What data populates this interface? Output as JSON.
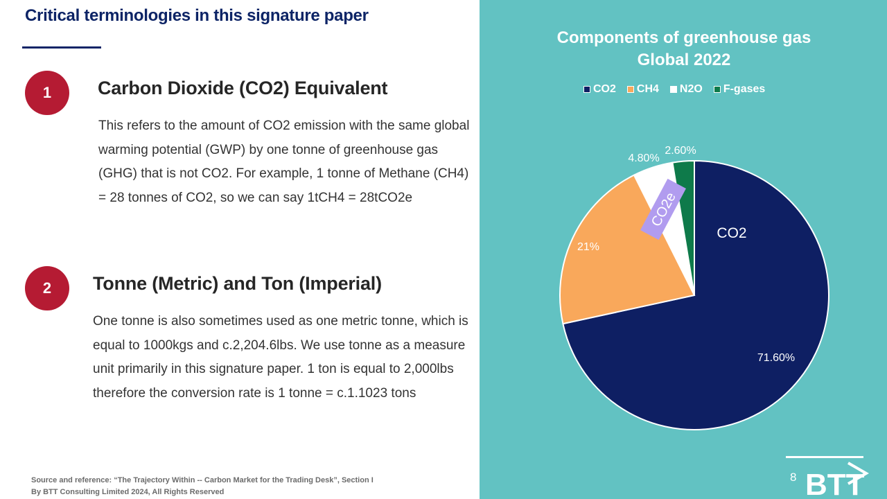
{
  "left": {
    "title": "Critical terminologies in this signature paper",
    "terms": [
      {
        "number": "1",
        "heading": "Carbon Dioxide (CO2) Equivalent",
        "body": "This refers to the amount of CO2 emission with the same global warming potential (GWP) by one tonne of greenhouse gas (GHG) that is not CO2. For example, 1 tonne of Methane (CH4) = 28 tonnes of CO2,  so we can say 1tCH4 = 28tCO2e"
      },
      {
        "number": "2",
        "heading": "Tonne (Metric) and Ton (Imperial)",
        "body": "One tonne is also sometimes used as one metric tonne, which is equal to 1000kgs and c.2,204.6lbs. We use tonne as a measure unit primarily in this signature paper. 1 ton is equal to 2,000lbs therefore the conversion rate is 1 tonne = c.1.1023 tons"
      }
    ],
    "source_line1": "Source and reference: “The Trajectory Within -- Carbon Market for the Trading Desk”, Section I",
    "source_line2": "By BTT Consulting Limited 2024, All Rights Reserved"
  },
  "chart_data": {
    "type": "pie",
    "title_line1": "Components of greenhouse gas",
    "title_line2": "Global 2022",
    "legend_position": "top",
    "slices": [
      {
        "label": "CO2",
        "value": 71.6,
        "value_label": "71.60%",
        "color": "#0e1f63"
      },
      {
        "label": "CH4",
        "value": 21.0,
        "value_label": "21%",
        "color": "#f9a85b"
      },
      {
        "label": "N2O",
        "value": 4.8,
        "value_label": "4.80%",
        "color": "#ffffff"
      },
      {
        "label": "F-gases",
        "value": 2.6,
        "value_label": "2.60%",
        "color": "#0e7a4a"
      }
    ],
    "annotations": {
      "inner_label": "CO2",
      "callout": "CO2e",
      "callout_color": "#b19cef"
    }
  },
  "page_number": "8",
  "logo_text": "BTT"
}
